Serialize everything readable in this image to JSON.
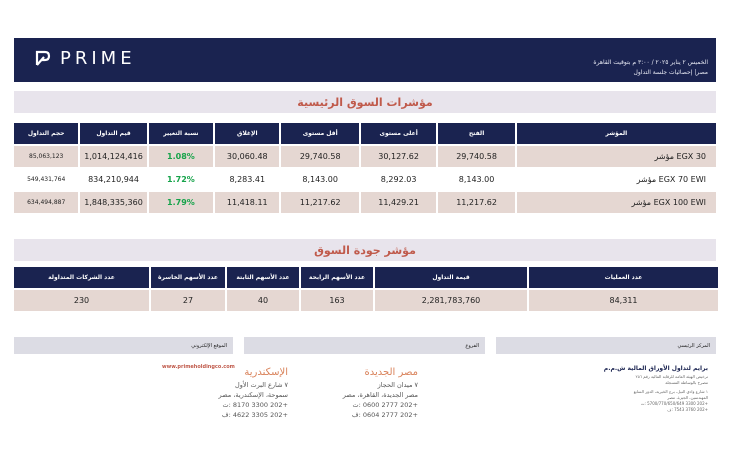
{
  "header": {
    "brand": "PRIME",
    "date_line": "الخميس ٢ يناير ٢٠٢٥ / ٣:٠٠ م بتوقيت القاهرة",
    "subtitle": "مصر| إحصائيات جلسة التداول"
  },
  "indices": {
    "title": "مؤشرات السوق الرئيسية",
    "headers": [
      "المؤشر",
      "الفتح",
      "أعلى مستوى",
      "أقل مستوى",
      "الإغلاق",
      "نسبة التغيير",
      "قيم التداول",
      "حجم التداول"
    ],
    "rows": [
      {
        "name": "مؤشر EGX 30",
        "open": "29,740.58",
        "high": "30,127.62",
        "low": "29,740.58",
        "close": "30,060.48",
        "change": "1.08%",
        "value": "1,014,124,416",
        "volume": "85,063,123"
      },
      {
        "name": "مؤشر EGX 70 EWI",
        "open": "8,143.00",
        "high": "8,292.03",
        "low": "8,143.00",
        "close": "8,283.41",
        "change": "1.72%",
        "value": "834,210,944",
        "volume": "549,431,764"
      },
      {
        "name": "مؤشر EGX 100 EWI",
        "open": "11,217.62",
        "high": "11,429.21",
        "low": "11,217.62",
        "close": "11,418.11",
        "change": "1.79%",
        "value": "1,848,335,360",
        "volume": "634,494,887"
      }
    ]
  },
  "quality": {
    "title": "مؤشر جودة السوق",
    "headers": [
      "عدد العمليات",
      "قيمة التداول",
      "عدد الأسهم الرابحة",
      "عدد الأسهم الثابتة",
      "عدد الأسهم الخاسرة",
      "عدد الشركات المتداولة"
    ],
    "values": [
      "84,311",
      "2,281,783,760",
      "163",
      "40",
      "27",
      "230"
    ]
  },
  "footer": {
    "hq_label": "المركز الرئيسي",
    "branches_label": "الفروع",
    "website_label": "الموقع الإلكتروني",
    "company": "برايم لتداول الأوراق المالية ش.م.م",
    "company_sub1": "ترخيص الهيئة العامة للرقابة المالية رقم ٢٥٦",
    "company_sub2": "مصرح بالوساطة المسجلة",
    "hq_address1": "١ شارع وادي النيل، برج الخيرية، الدور السابع",
    "hq_address2": "المهندسين، الجيزة، مصر",
    "hq_phone": "+202 3300 5700/770/650/649 :ت",
    "hq_fax": "+202 3760 7543 :ف",
    "branch1": {
      "city": "مصر الجديدة",
      "line1": "٧ ميدان الحجاز",
      "line2": "مصر الجديدة، القاهرة، مصر",
      "phone": "+202 2777 0600 :ت",
      "fax": "+202 2777 0604 :ف"
    },
    "branch2": {
      "city": "الإسكندرية",
      "line1": "٧ شارع البرت الأول",
      "line2": "سموحة، الإسكندرية، مصر",
      "phone": "+202 3300 8170 :ت",
      "fax": "+202 3305 4622 :ف"
    },
    "website": "www.primeholdingco.com"
  },
  "colors": {
    "navy": "#1a2350",
    "accent": "#c05a4b",
    "shade": "#e5d7d2",
    "green": "#16a34a"
  }
}
